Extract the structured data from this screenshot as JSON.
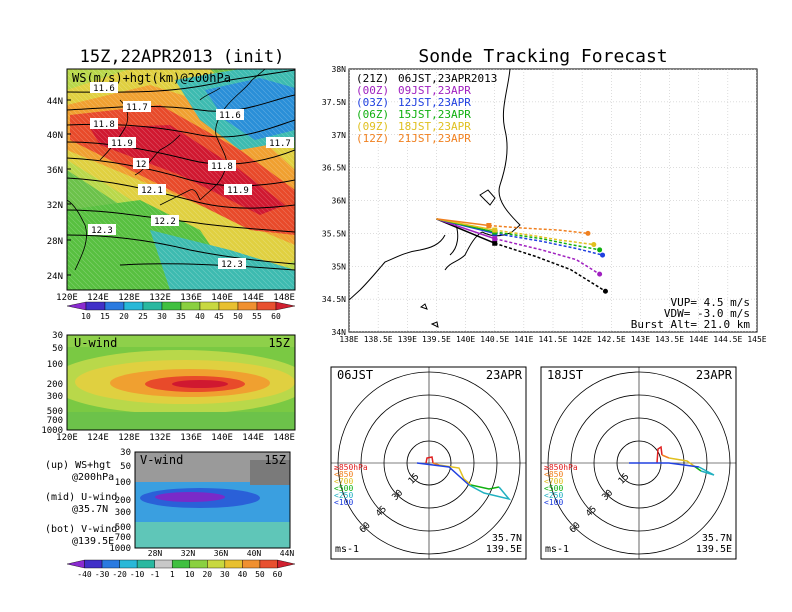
{
  "titles": {
    "left_main": "15Z,22APR2013 (init)",
    "right_main": "Sonde Tracking Forecast"
  },
  "map_panel": {
    "label": "WS(m/s)+hgt(km)@200hPa",
    "lat_ticks": [
      "44N",
      "40N",
      "36N",
      "32N",
      "28N",
      "24N"
    ],
    "lon_ticks": [
      "120E",
      "124E",
      "128E",
      "132E",
      "136E",
      "140E",
      "144E",
      "148E"
    ],
    "contour_labels": [
      "11.6",
      "11.7",
      "11.8",
      "11.9",
      "12",
      "12.1",
      "12.2",
      "12.3",
      "11.6",
      "11.7",
      "11.8",
      "11.9",
      "12.3"
    ],
    "colorbar_ticks": [
      "10",
      "15",
      "20",
      "25",
      "30",
      "35",
      "40",
      "45",
      "50",
      "55",
      "60"
    ]
  },
  "u_panel": {
    "label": "U-wind",
    "time": "15Z",
    "p_ticks": [
      "30",
      "50",
      "100",
      "200",
      "300",
      "500",
      "700",
      "1000"
    ],
    "lon_ticks": [
      "120E",
      "124E",
      "128E",
      "132E",
      "136E",
      "140E",
      "144E",
      "148E"
    ]
  },
  "v_panel": {
    "label": "V-wind",
    "time": "15Z",
    "p_ticks": [
      "30",
      "50",
      "100",
      "200",
      "300",
      "500",
      "700",
      "1000"
    ],
    "lat_ticks": [
      "28N",
      "32N",
      "36N",
      "40N",
      "44N"
    ],
    "colorbar_ticks": [
      "-40",
      "-30",
      "-20",
      "-10",
      "-1",
      "1",
      "10",
      "20",
      "30",
      "40",
      "50",
      "60"
    ]
  },
  "notes": {
    "line1a": "(up) WS+hgt",
    "line1b": "@200hPa",
    "line2a": "(mid) U-wind",
    "line2b": "@35.7N",
    "line3a": "(bot) V-wind",
    "line3b": "@139.5E"
  },
  "track_panel": {
    "lat_ticks": [
      "38N",
      "37.5N",
      "37N",
      "36.5N",
      "36N",
      "35.5N",
      "35N",
      "34.5N",
      "34N"
    ],
    "lon_ticks": [
      "138E",
      "138.5E",
      "139E",
      "139.5E",
      "140E",
      "140.5E",
      "141E",
      "141.5E",
      "142E",
      "142.5E",
      "143E",
      "143.5E",
      "144E",
      "144.5E",
      "145E"
    ],
    "legend": [
      {
        "code": "(21Z)",
        "text": "06JST,23APR2013",
        "color": "#000000"
      },
      {
        "code": "(00Z)",
        "text": "09JST,23APR",
        "color": "#a020c0"
      },
      {
        "code": "(03Z)",
        "text": "12JST,23APR",
        "color": "#2040e0"
      },
      {
        "code": "(06Z)",
        "text": "15JST,23APR",
        "color": "#10b010"
      },
      {
        "code": "(09Z)",
        "text": "18JST,23APR",
        "color": "#e0c020"
      },
      {
        "code": "(12Z)",
        "text": "21JST,23APR",
        "color": "#f08020"
      }
    ],
    "params": {
      "vup": "VUP= 4.5 m/s",
      "vdw": "VDW= -3.0 m/s",
      "burst": "Burst Alt= 21.0 km"
    }
  },
  "hodo_left": {
    "time": "06JST",
    "date": "23APR",
    "ring_labels": [
      "15",
      "30",
      "45",
      "60"
    ],
    "layers": [
      {
        "label": "≥850hPa",
        "color": "#e02020"
      },
      {
        "label": "<850",
        "color": "#f08020"
      },
      {
        "label": "<700",
        "color": "#e0c020"
      },
      {
        "label": "<500",
        "color": "#10b010"
      },
      {
        "label": "<250",
        "color": "#20b0c0"
      },
      {
        "label": "<100",
        "color": "#2040e0"
      }
    ],
    "lat": "35.7N",
    "lon": "139.5E",
    "unit": "ms-1"
  },
  "hodo_right": {
    "time": "18JST",
    "date": "23APR",
    "ring_labels": [
      "15",
      "30",
      "45",
      "60"
    ],
    "layers": [
      {
        "label": "≥850hPa",
        "color": "#e02020"
      },
      {
        "label": "<850",
        "color": "#f08020"
      },
      {
        "label": "<700",
        "color": "#e0c020"
      },
      {
        "label": "<500",
        "color": "#10b010"
      },
      {
        "label": "<250",
        "color": "#20b0c0"
      },
      {
        "label": "<100",
        "color": "#2040e0"
      }
    ],
    "lat": "35.7N",
    "lon": "139.5E",
    "unit": "ms-1"
  },
  "chart_data": {
    "type": "line",
    "title": "Sonde Tracking Forecast",
    "xlabel": "",
    "ylabel": "",
    "xlim": [
      138,
      145
    ],
    "ylim": [
      34,
      38
    ],
    "series": [
      {
        "name": "06JST,23APR2013",
        "color": "#000000",
        "x": [
          139.5,
          140.5,
          141.2,
          141.8,
          142.4
        ],
        "y": [
          35.72,
          35.35,
          35.15,
          34.95,
          34.62
        ]
      },
      {
        "name": "09JST,23APR",
        "color": "#a020c0",
        "x": [
          139.5,
          140.5,
          141.3,
          141.9,
          142.3
        ],
        "y": [
          35.72,
          35.42,
          35.25,
          35.1,
          34.88
        ]
      },
      {
        "name": "12JST,23APR",
        "color": "#2040e0",
        "x": [
          139.5,
          140.5,
          141.3,
          141.9,
          142.35
        ],
        "y": [
          35.72,
          35.5,
          35.38,
          35.27,
          35.17
        ]
      },
      {
        "name": "15JST,23APR",
        "color": "#10b010",
        "x": [
          139.5,
          140.5,
          141.3,
          141.8,
          142.3
        ],
        "y": [
          35.72,
          35.52,
          35.42,
          35.33,
          35.25
        ]
      },
      {
        "name": "18JST,23APR",
        "color": "#e0c020",
        "x": [
          139.5,
          140.5,
          141.2,
          141.6,
          142.2
        ],
        "y": [
          35.72,
          35.55,
          35.46,
          35.4,
          35.33
        ]
      },
      {
        "name": "21JST,23APR",
        "color": "#f08020",
        "x": [
          139.5,
          140.4,
          141.0,
          141.6,
          142.1
        ],
        "y": [
          35.72,
          35.62,
          35.58,
          35.55,
          35.5
        ]
      }
    ]
  }
}
